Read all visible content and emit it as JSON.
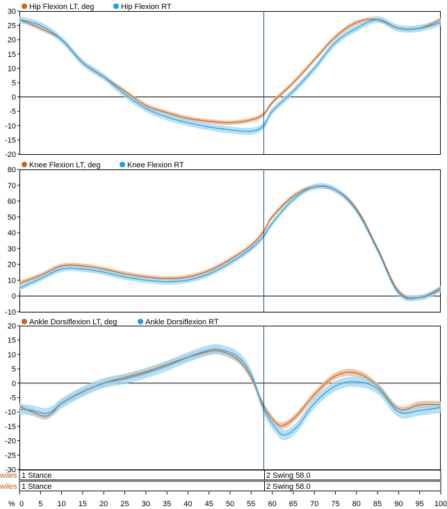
{
  "chart_data": [
    {
      "type": "line",
      "ylim": [
        -20,
        30
      ],
      "yticks": [
        30,
        25,
        20,
        15,
        10,
        5,
        0,
        -5,
        -10,
        -15,
        -20
      ],
      "xlim": [
        0,
        100
      ],
      "series": [
        {
          "name": "Hip Flexion LT, deg",
          "color": "#c8641e",
          "band_color": "#e8b48a",
          "band": 0.8,
          "x": [
            0,
            5,
            10,
            15,
            20,
            25,
            30,
            35,
            40,
            45,
            50,
            55,
            58,
            60,
            65,
            70,
            75,
            80,
            85,
            90,
            95,
            100
          ],
          "values": [
            27,
            24,
            20,
            12,
            7,
            2,
            -3,
            -5.5,
            -7.5,
            -8.5,
            -9,
            -8,
            -6,
            -2,
            5,
            13,
            21,
            26,
            27,
            24,
            24,
            27
          ]
        },
        {
          "name": "Hip Flexion RT",
          "color": "#1aa0e6",
          "band_color": "#9fd6f3",
          "band": 1.2,
          "x": [
            0,
            5,
            10,
            15,
            20,
            25,
            30,
            35,
            40,
            45,
            50,
            55,
            58,
            60,
            65,
            70,
            75,
            80,
            85,
            90,
            95,
            100
          ],
          "values": [
            27,
            25,
            20,
            12,
            7,
            1,
            -4,
            -7,
            -9,
            -10.5,
            -11.5,
            -12,
            -10,
            -5,
            2,
            10,
            19,
            24,
            27,
            24,
            24,
            26
          ]
        }
      ]
    },
    {
      "type": "line",
      "ylim": [
        -10,
        80
      ],
      "yticks": [
        80,
        70,
        60,
        50,
        40,
        30,
        20,
        10,
        0,
        -10
      ],
      "xlim": [
        0,
        100
      ],
      "series": [
        {
          "name": "Knee Flexion LT, deg",
          "color": "#c8641e",
          "band_color": "#e8b48a",
          "band": 1.5,
          "x": [
            0,
            5,
            10,
            15,
            20,
            25,
            30,
            35,
            40,
            45,
            50,
            55,
            58,
            60,
            65,
            70,
            75,
            80,
            85,
            90,
            95,
            100
          ],
          "values": [
            8,
            13,
            19,
            19,
            17,
            14,
            12,
            11,
            12,
            16,
            23,
            32,
            41,
            50,
            63,
            69,
            67,
            55,
            30,
            3,
            -1,
            5
          ]
        },
        {
          "name": "Knee Flexion RT",
          "color": "#1aa0e6",
          "band_color": "#9fd6f3",
          "band": 1.8,
          "x": [
            0,
            5,
            10,
            15,
            20,
            25,
            30,
            35,
            40,
            45,
            50,
            55,
            58,
            60,
            65,
            70,
            75,
            80,
            85,
            90,
            95,
            100
          ],
          "values": [
            5,
            11,
            17,
            17,
            15,
            12,
            10,
            9,
            10,
            14,
            21,
            30,
            38,
            46,
            61,
            69,
            67,
            54,
            29,
            2,
            -1,
            4
          ]
        }
      ]
    },
    {
      "type": "line",
      "ylim": [
        -30,
        20
      ],
      "yticks": [
        20,
        15,
        10,
        5,
        0,
        -5,
        -10,
        -15,
        -20,
        -25,
        -30
      ],
      "xlim": [
        0,
        100
      ],
      "series": [
        {
          "name": "Ankle Dorsiflexion LT, deg",
          "color": "#c8641e",
          "band_color": "#e8b48a",
          "band": 1.2,
          "x": [
            0,
            3,
            6,
            8,
            10,
            15,
            20,
            25,
            30,
            35,
            40,
            45,
            48,
            52,
            55,
            58,
            61,
            63,
            66,
            70,
            75,
            80,
            85,
            90,
            95,
            100
          ],
          "values": [
            -8,
            -10,
            -11.5,
            -10,
            -7,
            -3,
            0,
            2,
            4,
            6.5,
            9,
            11,
            11,
            8,
            2,
            -8,
            -14,
            -14.5,
            -11,
            -4,
            2.5,
            3.5,
            -1,
            -9,
            -7.5,
            -7.5
          ]
        },
        {
          "name": "Ankle Dorsiflexion RT",
          "color": "#1aa0e6",
          "band_color": "#9fd6f3",
          "band": 1.8,
          "x": [
            0,
            3,
            6,
            8,
            10,
            15,
            20,
            25,
            30,
            35,
            40,
            45,
            48,
            52,
            55,
            58,
            61,
            63,
            66,
            70,
            75,
            80,
            85,
            90,
            95,
            100
          ],
          "values": [
            -9,
            -9.5,
            -10.5,
            -9.5,
            -7,
            -3,
            0,
            1.5,
            3.5,
            6,
            9,
            11.5,
            11.5,
            9,
            3,
            -9,
            -16,
            -18,
            -15,
            -7,
            -1,
            0.5,
            -2,
            -10,
            -9.5,
            -8.5
          ]
        }
      ]
    }
  ],
  "xaxis": {
    "xticks": [
      0,
      5,
      10,
      15,
      20,
      25,
      30,
      35,
      40,
      45,
      50,
      55,
      60,
      65,
      70,
      75,
      80,
      85,
      90,
      95,
      100
    ],
    "unit_label": "%"
  },
  "cursor_x": 58,
  "phases": {
    "side_label_1": "wiles",
    "side_label_2": "wiles",
    "row1": {
      "stance": "1 Stance",
      "swing": "2 Swing 58.0"
    },
    "row2": {
      "stance": "1 Stance",
      "swing": "2 Swing 58.0"
    }
  }
}
